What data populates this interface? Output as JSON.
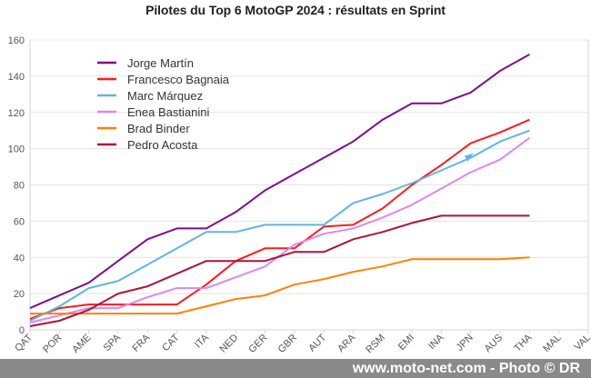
{
  "chart_data": {
    "type": "line",
    "title": "Pilotes du Top 6 MotoGP 2024 : résultats en Sprint",
    "xlabel": "",
    "ylabel": "",
    "ylim": [
      0,
      160
    ],
    "yticks": [
      0,
      20,
      40,
      60,
      80,
      100,
      120,
      140,
      160
    ],
    "grid": true,
    "legend_position": "top-left",
    "categories": [
      "QAT",
      "POR",
      "AME",
      "SPA",
      "FRA",
      "CAT",
      "ITA",
      "NED",
      "GER",
      "GBR",
      "AUT",
      "ARA",
      "RSM",
      "EMI",
      "INA",
      "JPN",
      "AUS",
      "THA",
      "MAL",
      "VAL"
    ],
    "series": [
      {
        "name": "Jorge Martín",
        "color": "#7b0f8c",
        "values": [
          12,
          19,
          26,
          38,
          50,
          56,
          56,
          65,
          77,
          86,
          95,
          104,
          116,
          125,
          125,
          131,
          143,
          152,
          null,
          null
        ]
      },
      {
        "name": "Francesco Bagnaia",
        "color": "#ff1a1a",
        "values": [
          6,
          12,
          14,
          14,
          14,
          14,
          25,
          38,
          45,
          45,
          57,
          58,
          67,
          80,
          91,
          103,
          109,
          116,
          null,
          null
        ]
      },
      {
        "name": "Marc Márquez",
        "color": "#5fb4e8",
        "values": [
          5,
          13,
          23,
          27,
          36,
          45,
          54,
          54,
          58,
          58,
          58,
          70,
          75,
          81,
          88,
          95,
          104,
          110,
          null,
          null
        ]
      },
      {
        "name": "Enea Bastianini",
        "color": "#dd88ee",
        "values": [
          4,
          8,
          12,
          12,
          18,
          23,
          23,
          29,
          35,
          47,
          53,
          56,
          62,
          69,
          78,
          87,
          94,
          106,
          null,
          null
        ]
      },
      {
        "name": "Brad Binder",
        "color": "#ff8000",
        "values": [
          9,
          9,
          9,
          9,
          9,
          9,
          13,
          17,
          19,
          25,
          28,
          32,
          35,
          39,
          39,
          39,
          39,
          40,
          null,
          null
        ]
      },
      {
        "name": "Pedro Acosta",
        "color": "#b0103f",
        "values": [
          2,
          5,
          11,
          20,
          24,
          31,
          38,
          38,
          38,
          43,
          43,
          50,
          54,
          59,
          63,
          63,
          63,
          63,
          null,
          null
        ]
      }
    ]
  },
  "footer": {
    "credit": "www.moto-net.com - Photo © DR",
    "background": "#8a8a8a"
  }
}
